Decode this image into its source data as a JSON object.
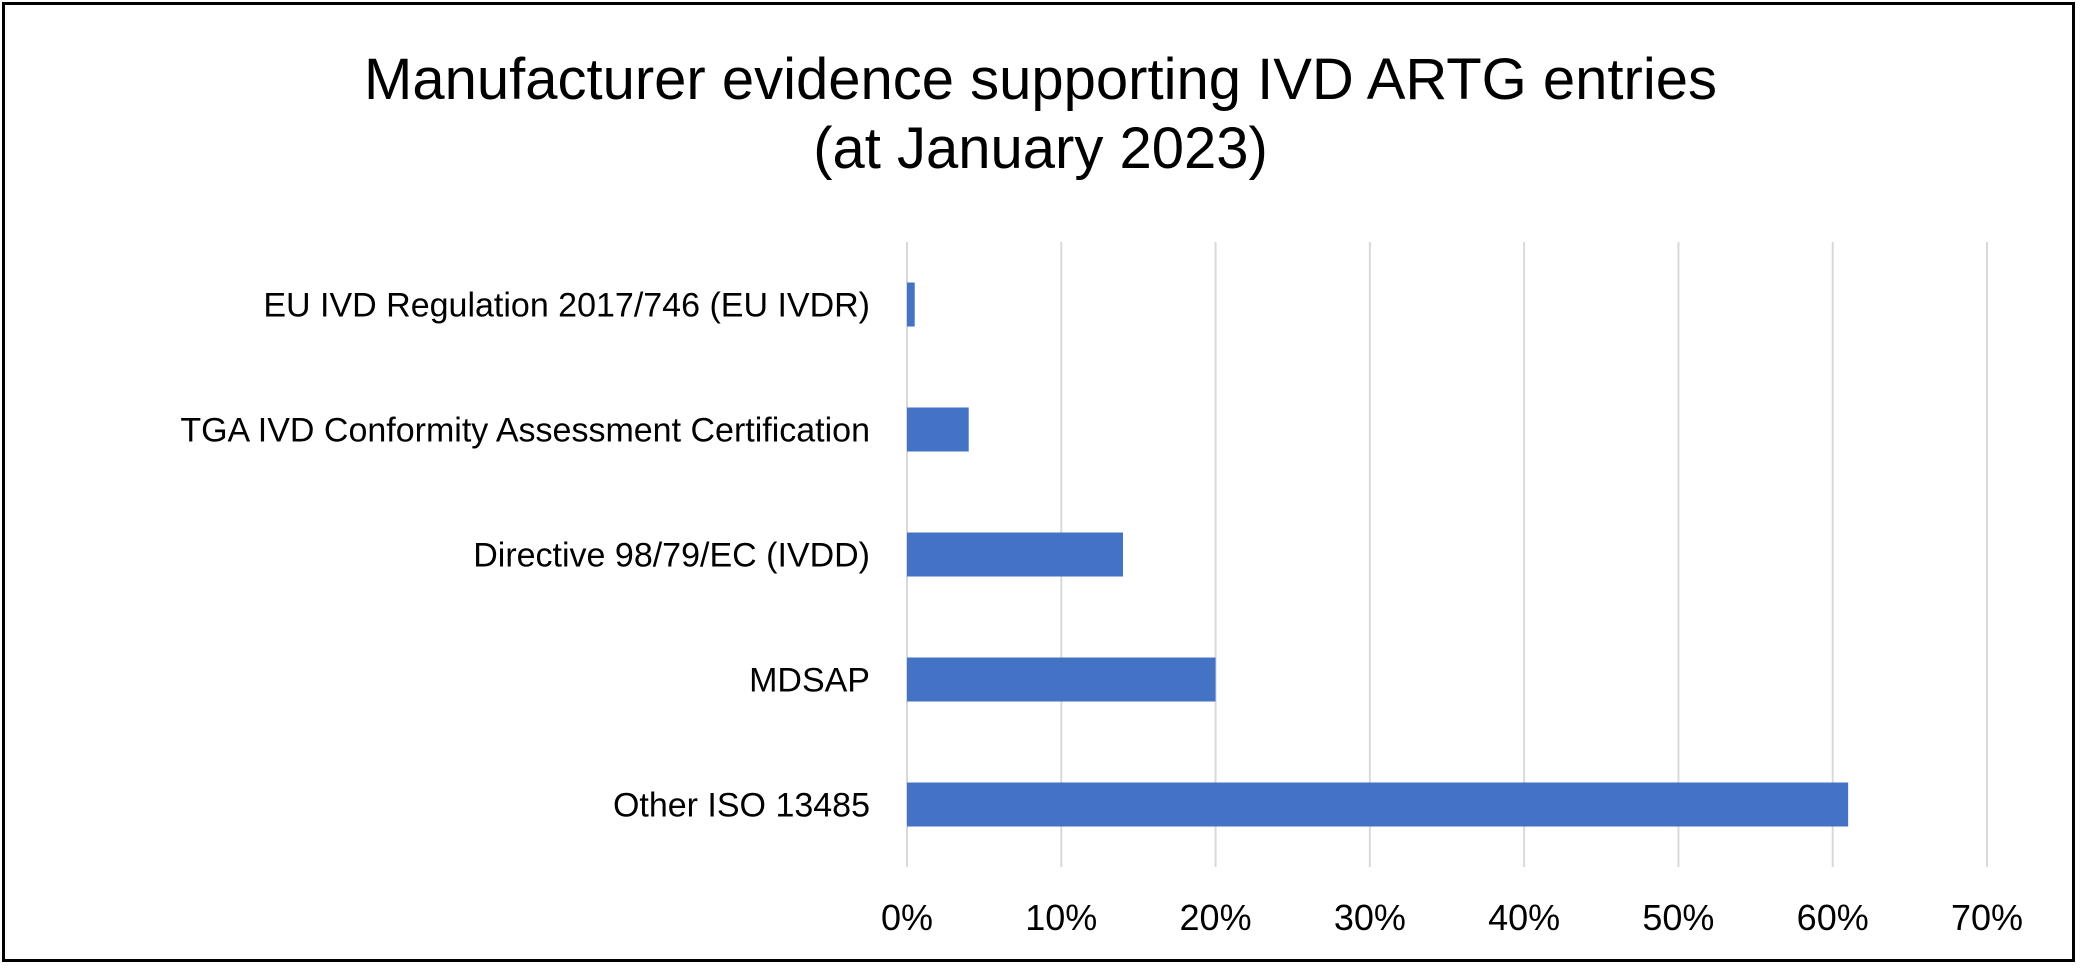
{
  "chart_data": {
    "type": "bar",
    "orientation": "horizontal",
    "title": [
      "Manufacturer evidence supporting IVD ARTG entries",
      "(at January 2023)"
    ],
    "categories": [
      "EU IVD Regulation 2017/746 (EU IVDR)",
      "TGA IVD Conformity Assessment Certification",
      "Directive 98/79/EC (IVDD)",
      "MDSAP",
      "Other ISO 13485"
    ],
    "values": [
      0.5,
      4,
      14,
      20,
      61
    ],
    "xlabel": "",
    "ylabel": "",
    "xlim": [
      0,
      70
    ],
    "xticks": [
      "0%",
      "10%",
      "20%",
      "30%",
      "40%",
      "50%",
      "60%",
      "70%"
    ],
    "grid": "vertical",
    "legend": "none",
    "bar_color": "#4472C4",
    "grid_color": "#D9D9D9"
  }
}
